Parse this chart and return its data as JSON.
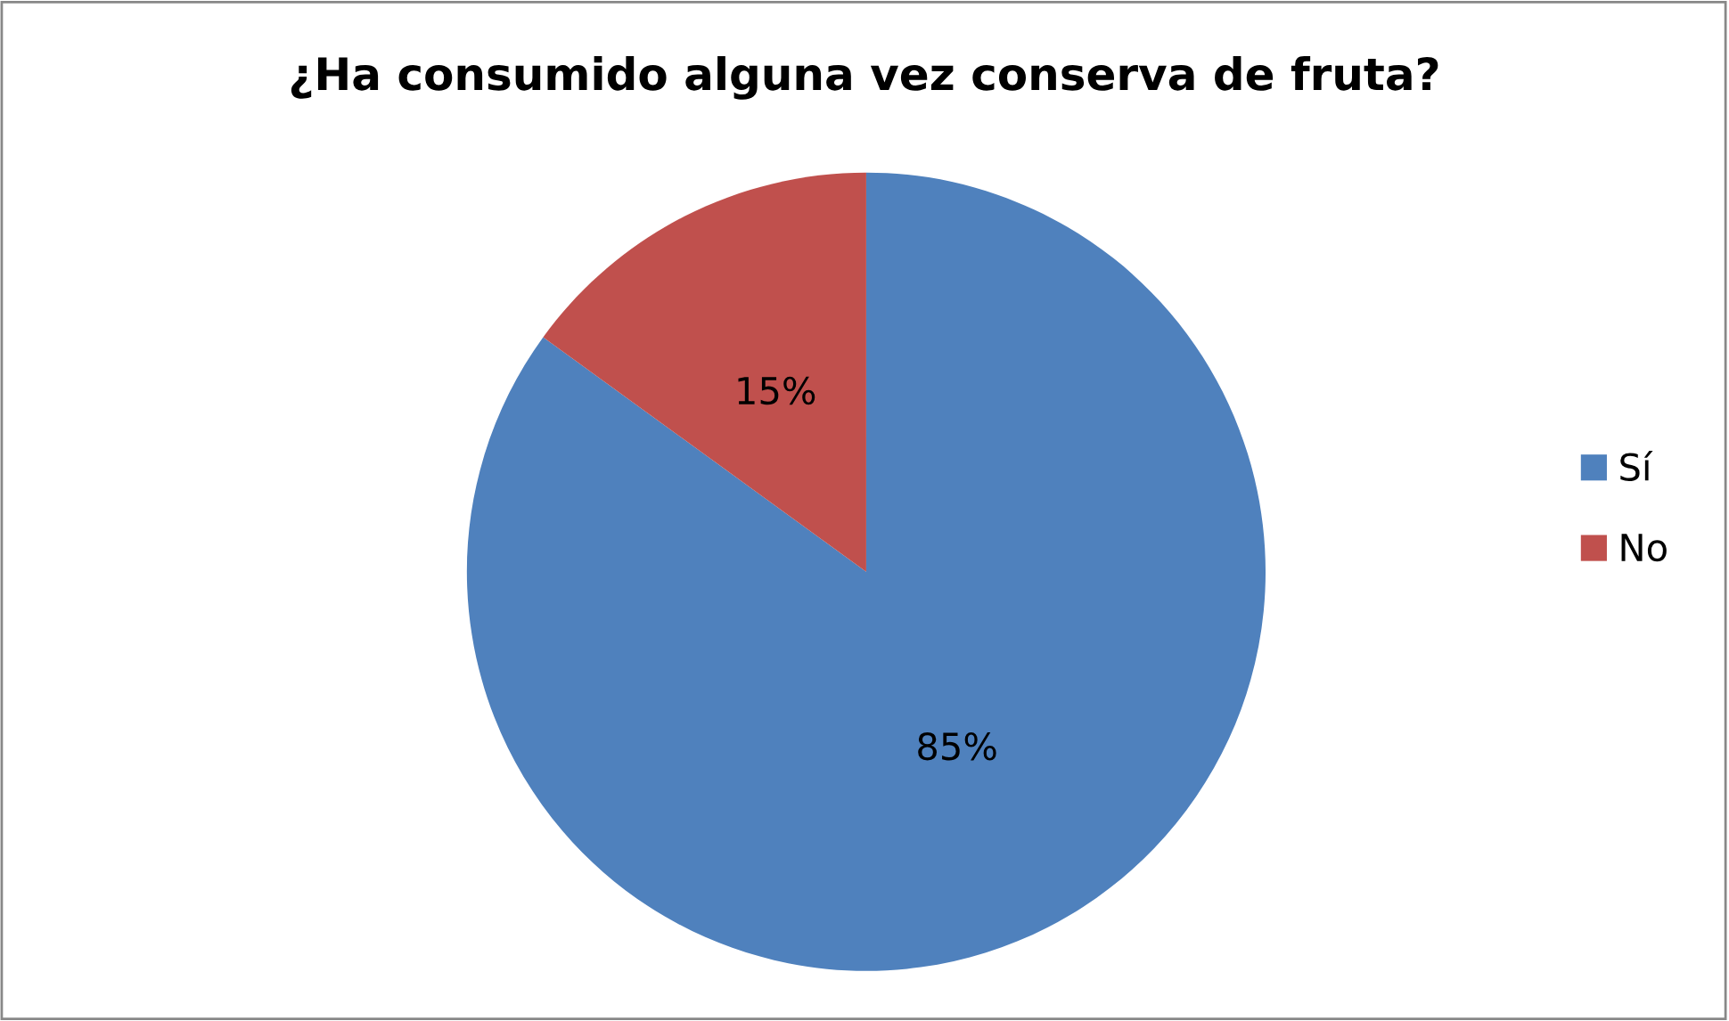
{
  "chart_data": {
    "type": "pie",
    "title": "¿Ha consumido alguna vez conserva de fruta?",
    "categories": [
      "Sí",
      "No"
    ],
    "values": [
      85,
      15
    ],
    "colors": [
      "#4f81bd",
      "#c0504d"
    ],
    "value_labels": [
      "85%",
      "15%"
    ],
    "legend": "right"
  }
}
